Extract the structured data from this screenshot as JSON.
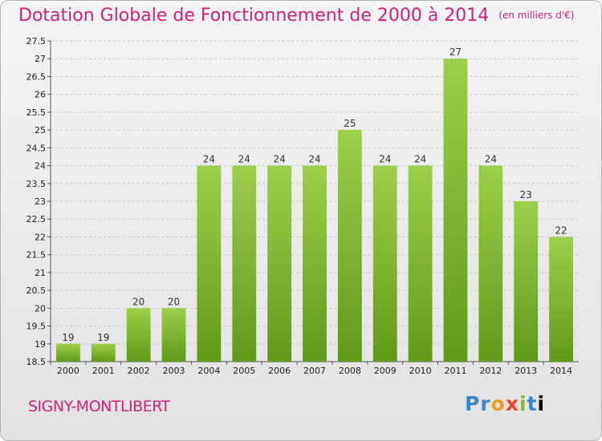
{
  "header": {
    "title": "Dotation Globale de Fonctionnement de 2000 à 2014",
    "unit": "(en milliers d'€)"
  },
  "footer": {
    "city": "SIGNY-MONTLIBERT",
    "logo_letters": [
      "P",
      "r",
      "o",
      "x",
      "i",
      "t",
      "i"
    ]
  },
  "colors": {
    "bar_light": "#9ccf4a",
    "bar_dark": "#5f9a19",
    "title": "#d11f7a",
    "grid": "#c8c8c8"
  },
  "chart_data": {
    "type": "bar",
    "title": "Dotation Globale de Fonctionnement de 2000 à 2014",
    "subtitle": "(en milliers d'€)",
    "xlabel": "",
    "ylabel": "",
    "categories": [
      "2000",
      "2001",
      "2002",
      "2003",
      "2004",
      "2005",
      "2006",
      "2007",
      "2008",
      "2009",
      "2010",
      "2011",
      "2012",
      "2013",
      "2014"
    ],
    "values": [
      19,
      19,
      20,
      20,
      24,
      24,
      24,
      24,
      25,
      24,
      24,
      27,
      24,
      23,
      22
    ],
    "ylim": [
      18.5,
      27.5
    ],
    "yticks": [
      "18.5",
      "19",
      "19.5",
      "20",
      "20.5",
      "21",
      "21.5",
      "22",
      "22.5",
      "23",
      "23.5",
      "24",
      "24.5",
      "25",
      "25.5",
      "26",
      "26.5",
      "27",
      "27.5"
    ],
    "grid": true,
    "legend": "none"
  }
}
